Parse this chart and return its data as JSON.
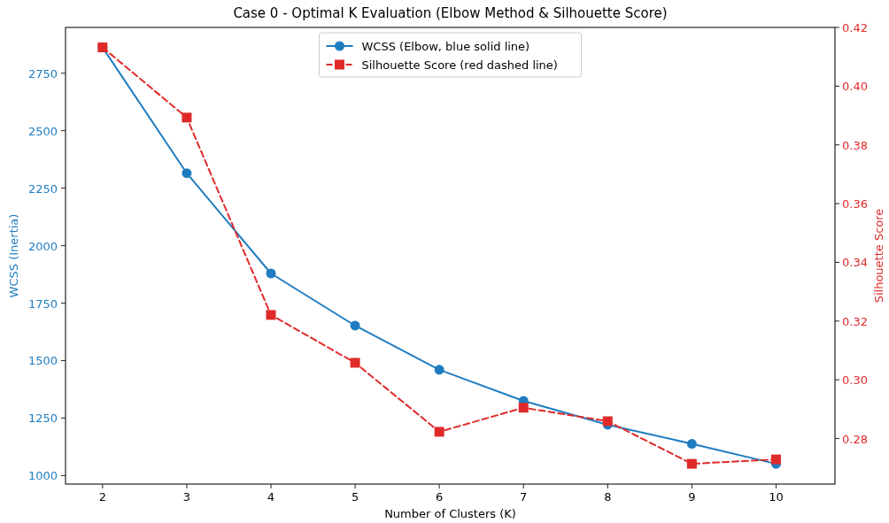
{
  "chart_data": {
    "type": "line",
    "title": "Case 0 - Optimal K Evaluation (Elbow Method & Silhouette Score)",
    "xlabel": "Number of Clusters (K)",
    "ylabel": "WCSS (Inertia)",
    "y2label": "Silhouette Score",
    "x": [
      2,
      3,
      4,
      5,
      6,
      7,
      8,
      9,
      10
    ],
    "series": [
      {
        "name": "WCSS (Elbow, blue solid line)",
        "color": "#1f7cc0",
        "values": [
          2862,
          2315,
          1879,
          1652,
          1460,
          1325,
          1221,
          1138,
          1051
        ],
        "marker": "circle",
        "line_style": "solid"
      },
      {
        "name": "Silhouette Score (red dashed line)",
        "color": "#e02a2a",
        "values": [
          0.4132,
          0.3893,
          0.3221,
          0.3058,
          0.2823,
          0.2905,
          0.2859,
          0.2714,
          0.2729
        ],
        "marker": "square",
        "line_style": "dashed",
        "axis": "y2"
      }
    ],
    "xlim": [
      1.56,
      10.7
    ],
    "xticks": [
      2,
      3,
      4,
      5,
      6,
      7,
      8,
      9,
      10
    ],
    "ylim": [
      963,
      2949
    ],
    "yticks": [
      1000,
      1250,
      1500,
      1750,
      2000,
      2250,
      2500,
      2750
    ],
    "y2lim": [
      0.2645,
      0.42
    ],
    "y2ticks": [
      {
        "value": 0.28,
        "label": "0.28"
      },
      {
        "value": 0.3,
        "label": "0.30"
      },
      {
        "value": 0.32,
        "label": "0.32"
      },
      {
        "value": 0.34,
        "label": "0.34"
      },
      {
        "value": 0.36,
        "label": "0.36"
      },
      {
        "value": 0.38,
        "label": "0.38"
      },
      {
        "value": 0.4,
        "label": "0.40"
      },
      {
        "value": 0.42,
        "label": "0.42"
      }
    ],
    "grid": false,
    "legend": "top"
  }
}
